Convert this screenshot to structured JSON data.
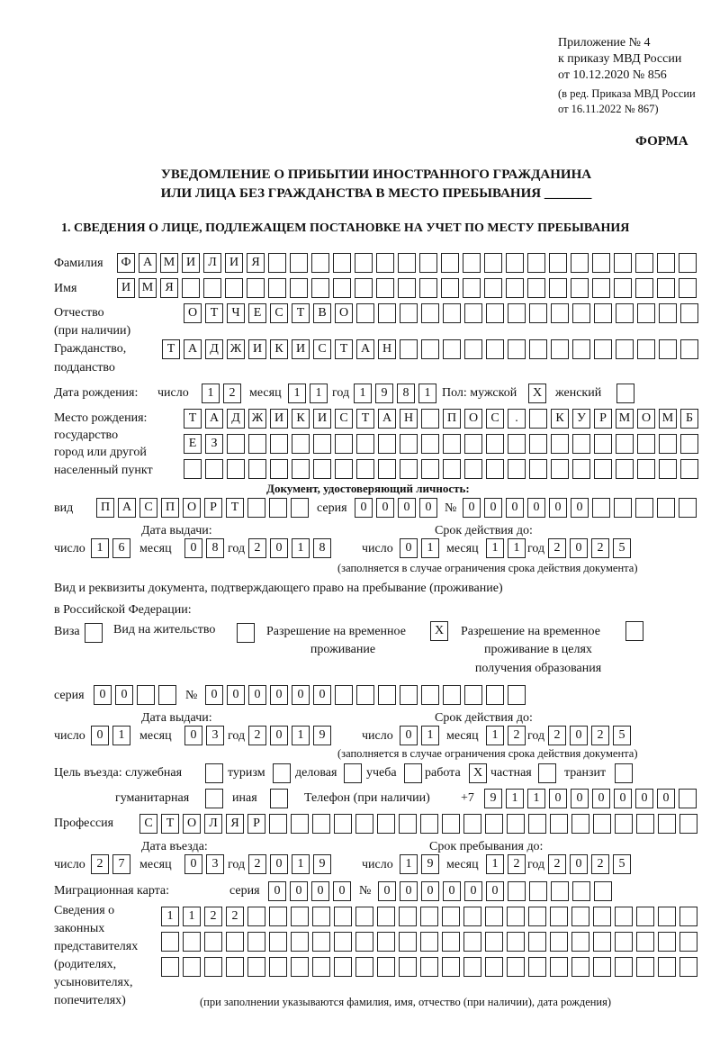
{
  "header": {
    "annex": "Приложение № 4",
    "order": "к приказу МВД России",
    "order_date": "от 10.12.2020 № 856",
    "revision1": "(в ред. Приказа МВД России",
    "revision2": "от 16.11.2022 № 867)",
    "form": "ФОРМА",
    "title1": "УВЕДОМЛЕНИЕ О ПРИБЫТИИ ИНОСТРАННОГО ГРАЖДАНИНА",
    "title2": "ИЛИ ЛИЦА БЕЗ ГРАЖДАНСТВА В МЕСТО ПРЕБЫВАНИЯ _______",
    "section1": "1. СВЕДЕНИЯ О ЛИЦЕ, ПОДЛЕЖАЩЕМ ПОСТАНОВКЕ НА УЧЕТ ПО МЕСТУ ПРЕБЫВАНИЯ"
  },
  "labels": {
    "surname": "Фамилия",
    "name": "Имя",
    "patronymic": "Отчество",
    "patronymic2": "(при наличии)",
    "citizenship": "Гражданство,",
    "citizenship2": "подданство",
    "birth_date": "Дата рождения:",
    "day": "число",
    "month": "месяц",
    "year": "год",
    "sex_male": "Пол: мужской",
    "sex_female": "женский",
    "birth_place": "Место рождения:",
    "bp2": "государство",
    "bp3": "город или другой",
    "bp4": "населенный пункт",
    "id_doc": "Документ, удостоверяющий личность:",
    "kind": "вид",
    "series": "серия",
    "number": "№",
    "issue_date": "Дата выдачи:",
    "valid_until": "Срок действия до:",
    "validity_note": "(заполняется в случае ограничения срока действия документа)",
    "right_doc1": "Вид и реквизиты документа, подтверждающего право на пребывание (проживание)",
    "right_doc2": "в Российской Федерации:",
    "visa": "Виза",
    "residence": "Вид на жительство",
    "trp1": "Разрешение на временное",
    "trp2": "проживание",
    "trpe1": "Разрешение на временное",
    "trpe2": "проживание в целях",
    "trpe3": "получения образования",
    "purpose": "Цель въезда: служебная",
    "tourism": "туризм",
    "business": "деловая",
    "study": "учеба",
    "work": "работа",
    "private": "частная",
    "transit": "транзит",
    "humanitarian": "гуманитарная",
    "other": "иная",
    "phone": "Телефон (при наличии)",
    "phone_prefix": "+7",
    "profession": "Профессия",
    "entry_date": "Дата въезда:",
    "stay_until": "Срок пребывания до:",
    "migration_card": "Миграционная карта:",
    "rep1": "Сведения о",
    "rep2": "законных",
    "rep3": "представителях",
    "rep4": "(родителях,",
    "rep5": "усыновителях,",
    "rep6": "попечителях)",
    "rep_note": "(при заполнении указываются фамилия, имя, отчество (при наличии), дата рождения)"
  },
  "person": {
    "surname": "ФАМИЛИЯ",
    "name": "ИМЯ",
    "patronymic": "ОТЧЕСТВО",
    "citizenship": "ТАДЖИКИСТАН",
    "birth": {
      "day": "12",
      "month": "11",
      "year": "1981"
    },
    "sex_male": "X",
    "sex_female": "",
    "birth_place": [
      "ТАДЖИКИСТАН ПОС. КУРМОМБ",
      "ЕЗ",
      ""
    ],
    "id_doc": {
      "kind": "ПАСПОРТ",
      "series": "0000",
      "number": "000000",
      "issue": {
        "day": "16",
        "month": "08",
        "year": "2018"
      },
      "valid": {
        "day": "01",
        "month": "11",
        "year": "2025"
      }
    },
    "right_doc": {
      "visa": "",
      "residence": "",
      "trp": "X",
      "trpe": "",
      "series": "00",
      "number": "000000",
      "issue": {
        "day": "01",
        "month": "03",
        "year": "2019"
      },
      "valid": {
        "day": "01",
        "month": "12",
        "year": "2025"
      }
    },
    "purpose": {
      "official": "",
      "tourism": "",
      "business": "",
      "study": "",
      "work": "X",
      "private": "",
      "transit": "",
      "humanitarian": "",
      "other": ""
    },
    "phone": "911000000",
    "profession": "СТОЛЯР",
    "entry": {
      "day": "27",
      "month": "03",
      "year": "2019"
    },
    "stay_until": {
      "day": "19",
      "month": "12",
      "year": "2025"
    },
    "migration_card": {
      "series": "0000",
      "number": "000000"
    },
    "representatives": [
      "1122",
      "",
      ""
    ]
  }
}
